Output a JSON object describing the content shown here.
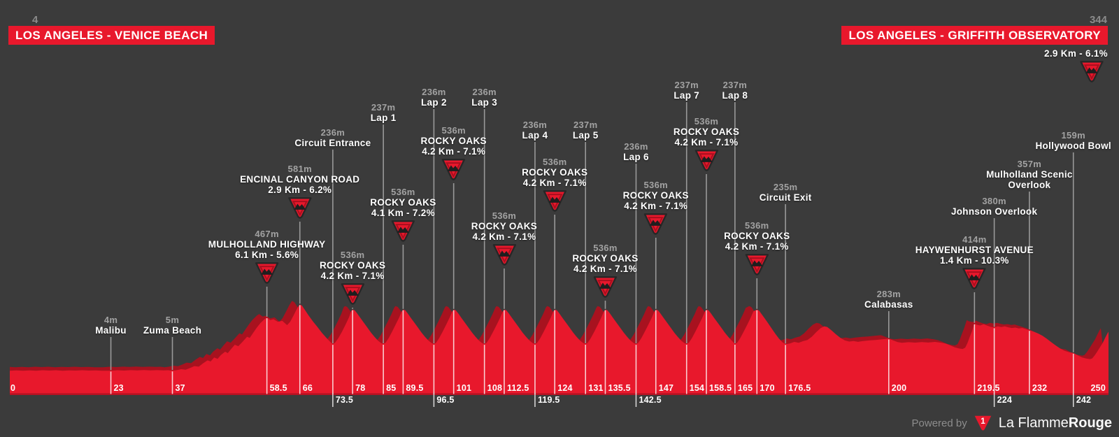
{
  "colors": {
    "background": "#3b3b3b",
    "red": "#e8182c",
    "red_shadow": "#a8121f",
    "line_gray": "#999999",
    "line_white": "#f2f2f2",
    "text_gray": "#a2a2a2",
    "elev_num_gray": "#8b8b8b",
    "icon_border": "#272727",
    "icon_inner_ring": "#a90f1e"
  },
  "header": {
    "left_elevation": "4",
    "left_title": "LOS ANGELES - VENICE BEACH",
    "right_elevation": "344",
    "right_title": "LOS ANGELES - GRIFFITH OBSERVATORY"
  },
  "finish": {
    "detail": "2.9 Km - 6.1%"
  },
  "footer": {
    "powered_by": "Powered by",
    "brand_light": "La Flamme",
    "brand_bold": "Rouge",
    "logo_glyph": "1"
  },
  "chart_data": {
    "type": "area",
    "title": "Stage elevation profile",
    "x_unit": "km",
    "y_unit": "m",
    "xlim": [
      0,
      250
    ],
    "ylim": [
      0,
      600
    ],
    "start_elevation_m": 4,
    "finish_elevation_m": 344,
    "total_distance_km": 250,
    "legend": "none",
    "grid": false,
    "profile": [
      [
        0,
        4
      ],
      [
        1.5,
        7
      ],
      [
        3,
        5
      ],
      [
        4.5,
        8
      ],
      [
        6,
        5
      ],
      [
        7.5,
        9
      ],
      [
        9,
        6
      ],
      [
        10.5,
        9
      ],
      [
        12,
        5
      ],
      [
        13.5,
        8
      ],
      [
        15,
        6
      ],
      [
        16.5,
        9
      ],
      [
        18,
        6
      ],
      [
        19.5,
        8
      ],
      [
        21,
        5
      ],
      [
        23,
        4
      ],
      [
        24.5,
        9
      ],
      [
        26,
        6
      ],
      [
        27.5,
        10
      ],
      [
        29,
        7
      ],
      [
        30.5,
        11
      ],
      [
        32,
        7
      ],
      [
        33.5,
        10
      ],
      [
        35,
        7
      ],
      [
        36,
        9
      ],
      [
        37,
        5
      ],
      [
        38,
        10
      ],
      [
        39,
        18
      ],
      [
        40,
        14
      ],
      [
        41,
        28
      ],
      [
        42,
        45
      ],
      [
        43,
        40
      ],
      [
        44,
        70
      ],
      [
        45,
        95
      ],
      [
        45.7,
        85
      ],
      [
        46.5,
        120
      ],
      [
        47.3,
        108
      ],
      [
        48,
        140
      ],
      [
        49,
        170
      ],
      [
        49.6,
        158
      ],
      [
        50.4,
        195
      ],
      [
        51.2,
        230
      ],
      [
        52,
        218
      ],
      [
        53,
        258
      ],
      [
        54,
        300
      ],
      [
        54.6,
        290
      ],
      [
        55.4,
        335
      ],
      [
        56.2,
        380
      ],
      [
        57,
        418
      ],
      [
        58,
        455
      ],
      [
        58.5,
        467
      ],
      [
        59.3,
        445
      ],
      [
        60,
        452
      ],
      [
        61,
        430
      ],
      [
        62,
        438
      ],
      [
        63.1,
        401
      ],
      [
        63.8,
        430
      ],
      [
        64.5,
        480
      ],
      [
        65.3,
        540
      ],
      [
        65.8,
        572
      ],
      [
        66,
        581
      ],
      [
        66.5,
        570
      ],
      [
        67.2,
        530
      ],
      [
        68,
        485
      ],
      [
        69,
        432
      ],
      [
        70,
        385
      ],
      [
        71,
        335
      ],
      [
        72,
        292
      ],
      [
        73,
        252
      ],
      [
        73.5,
        236
      ],
      [
        74,
        248
      ],
      [
        74.8,
        290
      ],
      [
        75.6,
        345
      ],
      [
        76.4,
        405
      ],
      [
        77.2,
        470
      ],
      [
        77.7,
        525
      ],
      [
        78,
        536
      ],
      [
        78.5,
        529
      ],
      [
        79,
        505
      ],
      [
        79.8,
        462
      ],
      [
        80.6,
        420
      ],
      [
        81.4,
        378
      ],
      [
        82.2,
        336
      ],
      [
        83,
        298
      ],
      [
        83.8,
        265
      ],
      [
        84.5,
        244
      ],
      [
        85,
        237
      ],
      [
        85.5,
        248
      ],
      [
        86.2,
        288
      ],
      [
        87,
        345
      ],
      [
        87.8,
        405
      ],
      [
        88.6,
        468
      ],
      [
        89.2,
        521
      ],
      [
        89.5,
        536
      ],
      [
        90,
        529
      ],
      [
        90.5,
        505
      ],
      [
        91.3,
        462
      ],
      [
        92.1,
        420
      ],
      [
        92.9,
        378
      ],
      [
        93.7,
        336
      ],
      [
        94.5,
        298
      ],
      [
        95.3,
        265
      ],
      [
        96,
        244
      ],
      [
        96.5,
        236
      ],
      [
        97,
        248
      ],
      [
        97.7,
        288
      ],
      [
        98.5,
        345
      ],
      [
        99.3,
        405
      ],
      [
        100.1,
        468
      ],
      [
        100.7,
        521
      ],
      [
        101,
        536
      ],
      [
        101.5,
        529
      ],
      [
        102,
        505
      ],
      [
        102.8,
        462
      ],
      [
        103.6,
        420
      ],
      [
        104.4,
        378
      ],
      [
        105.2,
        336
      ],
      [
        106,
        298
      ],
      [
        106.8,
        265
      ],
      [
        107.5,
        244
      ],
      [
        108,
        236
      ],
      [
        108.5,
        248
      ],
      [
        109.2,
        288
      ],
      [
        110,
        345
      ],
      [
        110.8,
        405
      ],
      [
        111.6,
        468
      ],
      [
        112.2,
        521
      ],
      [
        112.5,
        536
      ],
      [
        113,
        529
      ],
      [
        113.5,
        505
      ],
      [
        114.3,
        462
      ],
      [
        115.1,
        420
      ],
      [
        115.9,
        378
      ],
      [
        116.7,
        336
      ],
      [
        117.5,
        298
      ],
      [
        118.3,
        265
      ],
      [
        119,
        244
      ],
      [
        119.5,
        236
      ],
      [
        120,
        248
      ],
      [
        120.7,
        288
      ],
      [
        121.5,
        345
      ],
      [
        122.3,
        405
      ],
      [
        123.1,
        468
      ],
      [
        123.7,
        521
      ],
      [
        124,
        536
      ],
      [
        124.5,
        529
      ],
      [
        125,
        505
      ],
      [
        125.8,
        462
      ],
      [
        126.6,
        420
      ],
      [
        127.4,
        378
      ],
      [
        128.2,
        336
      ],
      [
        129,
        298
      ],
      [
        129.8,
        265
      ],
      [
        130.5,
        244
      ],
      [
        131,
        237
      ],
      [
        131.5,
        248
      ],
      [
        132.2,
        288
      ],
      [
        133,
        345
      ],
      [
        133.8,
        405
      ],
      [
        134.6,
        468
      ],
      [
        135.2,
        521
      ],
      [
        135.5,
        536
      ],
      [
        136,
        529
      ],
      [
        136.5,
        505
      ],
      [
        137.3,
        462
      ],
      [
        138.1,
        420
      ],
      [
        138.9,
        378
      ],
      [
        139.7,
        336
      ],
      [
        140.5,
        298
      ],
      [
        141.3,
        265
      ],
      [
        142,
        244
      ],
      [
        142.5,
        236
      ],
      [
        143,
        248
      ],
      [
        143.7,
        288
      ],
      [
        144.5,
        345
      ],
      [
        145.3,
        405
      ],
      [
        146.1,
        468
      ],
      [
        146.7,
        521
      ],
      [
        147,
        536
      ],
      [
        147.5,
        529
      ],
      [
        148,
        505
      ],
      [
        148.8,
        462
      ],
      [
        149.6,
        420
      ],
      [
        150.4,
        378
      ],
      [
        151.2,
        336
      ],
      [
        152,
        298
      ],
      [
        152.8,
        265
      ],
      [
        153.5,
        244
      ],
      [
        154,
        237
      ],
      [
        154.5,
        248
      ],
      [
        155.2,
        288
      ],
      [
        156,
        345
      ],
      [
        156.8,
        405
      ],
      [
        157.6,
        468
      ],
      [
        158.2,
        521
      ],
      [
        158.5,
        536
      ],
      [
        159,
        529
      ],
      [
        159.5,
        505
      ],
      [
        160.3,
        462
      ],
      [
        161.1,
        420
      ],
      [
        161.9,
        378
      ],
      [
        162.7,
        336
      ],
      [
        163.5,
        298
      ],
      [
        164.3,
        265
      ],
      [
        164.8,
        244
      ],
      [
        165,
        237
      ],
      [
        165.5,
        248
      ],
      [
        166.2,
        288
      ],
      [
        167,
        345
      ],
      [
        167.8,
        405
      ],
      [
        168.6,
        468
      ],
      [
        169.2,
        521
      ],
      [
        170,
        536
      ],
      [
        170.5,
        527
      ],
      [
        171,
        500
      ],
      [
        171.8,
        458
      ],
      [
        172.6,
        415
      ],
      [
        173.4,
        370
      ],
      [
        174.2,
        325
      ],
      [
        175,
        285
      ],
      [
        175.8,
        252
      ],
      [
        176.5,
        235
      ],
      [
        177.5,
        242
      ],
      [
        178.5,
        255
      ],
      [
        179.5,
        248
      ],
      [
        180.5,
        262
      ],
      [
        181.5,
        272
      ],
      [
        182.5,
        300
      ],
      [
        183.5,
        340
      ],
      [
        184.5,
        375
      ],
      [
        185.3,
        390
      ],
      [
        186,
        385
      ],
      [
        187,
        355
      ],
      [
        188,
        320
      ],
      [
        189,
        290
      ],
      [
        190,
        268
      ],
      [
        191,
        258
      ],
      [
        192,
        263
      ],
      [
        193,
        256
      ],
      [
        194,
        262
      ],
      [
        195.5,
        268
      ],
      [
        197,
        272
      ],
      [
        198.5,
        278
      ],
      [
        200,
        283
      ],
      [
        201,
        268
      ],
      [
        202,
        254
      ],
      [
        203,
        248
      ],
      [
        204.5,
        253
      ],
      [
        206,
        249
      ],
      [
        207.5,
        254
      ],
      [
        209,
        250
      ],
      [
        210.5,
        255
      ],
      [
        212,
        248
      ],
      [
        213,
        240
      ],
      [
        214,
        225
      ],
      [
        215,
        208
      ],
      [
        216,
        198
      ],
      [
        216.8,
        194
      ],
      [
        217.4,
        205
      ],
      [
        217.9,
        245
      ],
      [
        218.4,
        295
      ],
      [
        218.9,
        345
      ],
      [
        219.3,
        392
      ],
      [
        219.5,
        414
      ],
      [
        220,
        404
      ],
      [
        220.8,
        398
      ],
      [
        221.6,
        408
      ],
      [
        222.4,
        396
      ],
      [
        223.2,
        386
      ],
      [
        224,
        380
      ],
      [
        224.8,
        390
      ],
      [
        225.6,
        384
      ],
      [
        226.4,
        390
      ],
      [
        227.2,
        382
      ],
      [
        228,
        376
      ],
      [
        228.8,
        380
      ],
      [
        229.6,
        372
      ],
      [
        230.4,
        376
      ],
      [
        231.2,
        366
      ],
      [
        232,
        357
      ],
      [
        233,
        344
      ],
      [
        234,
        328
      ],
      [
        235,
        308
      ],
      [
        236,
        282
      ],
      [
        237,
        252
      ],
      [
        238,
        224
      ],
      [
        239,
        198
      ],
      [
        240,
        178
      ],
      [
        241,
        165
      ],
      [
        242,
        159
      ],
      [
        243,
        138
      ],
      [
        244,
        120
      ],
      [
        245,
        110
      ],
      [
        245.8,
        106
      ],
      [
        246.3,
        112
      ],
      [
        246.8,
        135
      ],
      [
        247.3,
        163
      ],
      [
        248,
        205
      ],
      [
        248.7,
        248
      ],
      [
        249.3,
        295
      ],
      [
        249.7,
        325
      ],
      [
        250,
        344
      ]
    ],
    "markers": [
      {
        "km": 23,
        "elev": "4m",
        "name": "Malibu",
        "top": 450
      },
      {
        "km": 37,
        "elev": "5m",
        "name": "Zuma Beach",
        "top": 450
      },
      {
        "km": 58.5,
        "elev": "467m",
        "name": "MULHOLLAND HIGHWAY",
        "detail": "6.1 Km - 5.6%",
        "icon": true,
        "top": 327
      },
      {
        "km": 66,
        "elev": "581m",
        "name": "ENCINAL CANYON ROAD",
        "detail": "2.9 Km - 6.2%",
        "icon": true,
        "top": 234
      },
      {
        "km": 73.5,
        "elev": "236m",
        "name": "Circuit Entrance",
        "top": 182
      },
      {
        "km": 78,
        "elev": "536m",
        "name": "ROCKY OAKS",
        "detail": "4.2 Km - 7.1%",
        "icon": true,
        "top": 357
      },
      {
        "km": 85,
        "elev": "237m",
        "name": "Lap 1",
        "top": 146
      },
      {
        "km": 89.5,
        "elev": "536m",
        "name": "ROCKY OAKS",
        "detail": "4.1 Km - 7.2%",
        "icon": true,
        "top": 267
      },
      {
        "km": 96.5,
        "elev": "236m",
        "name": "Lap 2",
        "top": 124
      },
      {
        "km": 101,
        "elev": "536m",
        "name": "ROCKY OAKS",
        "detail": "4.2 Km - 7.1%",
        "icon": true,
        "top": 179
      },
      {
        "km": 108,
        "elev": "236m",
        "name": "Lap 3",
        "top": 124
      },
      {
        "km": 112.5,
        "elev": "536m",
        "name": "ROCKY OAKS",
        "detail": "4.2 Km - 7.1%",
        "icon": true,
        "top": 301
      },
      {
        "km": 119.5,
        "elev": "236m",
        "name": "Lap 4",
        "top": 171
      },
      {
        "km": 124,
        "elev": "536m",
        "name": "ROCKY OAKS",
        "detail": "4.2 Km - 7.1%",
        "icon": true,
        "top": 224
      },
      {
        "km": 131,
        "elev": "237m",
        "name": "Lap 5",
        "top": 171
      },
      {
        "km": 135.5,
        "elev": "536m",
        "name": "ROCKY OAKS",
        "detail": "4.2 Km - 7.1%",
        "icon": true,
        "top": 347
      },
      {
        "km": 142.5,
        "elev": "236m",
        "name": "Lap 6",
        "top": 202
      },
      {
        "km": 147,
        "elev": "536m",
        "name": "ROCKY OAKS",
        "detail": "4.2 Km - 7.1%",
        "icon": true,
        "top": 257
      },
      {
        "km": 154,
        "elev": "237m",
        "name": "Lap 7",
        "top": 114
      },
      {
        "km": 158.5,
        "elev": "536m",
        "name": "ROCKY OAKS",
        "detail": "4.2 Km - 7.1%",
        "icon": true,
        "top": 166
      },
      {
        "km": 165,
        "elev": "237m",
        "name": "Lap 8",
        "top": 114
      },
      {
        "km": 170,
        "elev": "536m",
        "name": "ROCKY OAKS",
        "detail": "4.2 Km - 7.1%",
        "icon": true,
        "top": 315
      },
      {
        "km": 176.5,
        "elev": "235m",
        "name": "Circuit Exit",
        "top": 260
      },
      {
        "km": 200,
        "elev": "283m",
        "name": "Calabasas",
        "top": 413
      },
      {
        "km": 219.5,
        "elev": "414m",
        "name": "HAYWENHURST AVENUE",
        "detail": "1.4 Km - 10.3%",
        "icon": true,
        "top": 335
      },
      {
        "km": 224,
        "elev": "380m",
        "name": "Johnson Overlook",
        "top": 280
      },
      {
        "km": 232,
        "elev": "357m",
        "name": "Mulholland Scenic",
        "name2": "Overlook",
        "top": 227
      },
      {
        "km": 242,
        "elev": "159m",
        "name": "Hollywood Bowl",
        "top": 186
      }
    ],
    "x_ticks": [
      {
        "km": 0,
        "label": "0",
        "edge": "left"
      },
      {
        "km": 23,
        "label": "23"
      },
      {
        "km": 37,
        "label": "37"
      },
      {
        "km": 58.5,
        "label": "58.5"
      },
      {
        "km": 66,
        "label": "66"
      },
      {
        "km": 73.5,
        "label": "73.5",
        "below": true
      },
      {
        "km": 78,
        "label": "78"
      },
      {
        "km": 85,
        "label": "85"
      },
      {
        "km": 89.5,
        "label": "89.5"
      },
      {
        "km": 96.5,
        "label": "96.5",
        "below": true
      },
      {
        "km": 101,
        "label": "101"
      },
      {
        "km": 108,
        "label": "108"
      },
      {
        "km": 112.5,
        "label": "112.5"
      },
      {
        "km": 119.5,
        "label": "119.5",
        "below": true
      },
      {
        "km": 124,
        "label": "124"
      },
      {
        "km": 131,
        "label": "131"
      },
      {
        "km": 135.5,
        "label": "135.5"
      },
      {
        "km": 142.5,
        "label": "142.5",
        "below": true
      },
      {
        "km": 147,
        "label": "147"
      },
      {
        "km": 154,
        "label": "154"
      },
      {
        "km": 158.5,
        "label": "158.5"
      },
      {
        "km": 165,
        "label": "165"
      },
      {
        "km": 170,
        "label": "170"
      },
      {
        "km": 176.5,
        "label": "176.5"
      },
      {
        "km": 200,
        "label": "200"
      },
      {
        "km": 219.5,
        "label": "219.5"
      },
      {
        "km": 224,
        "label": "224",
        "below": true
      },
      {
        "km": 232,
        "label": "232"
      },
      {
        "km": 242,
        "label": "242",
        "below": true
      },
      {
        "km": 250,
        "label": "250",
        "edge": "right"
      }
    ]
  }
}
